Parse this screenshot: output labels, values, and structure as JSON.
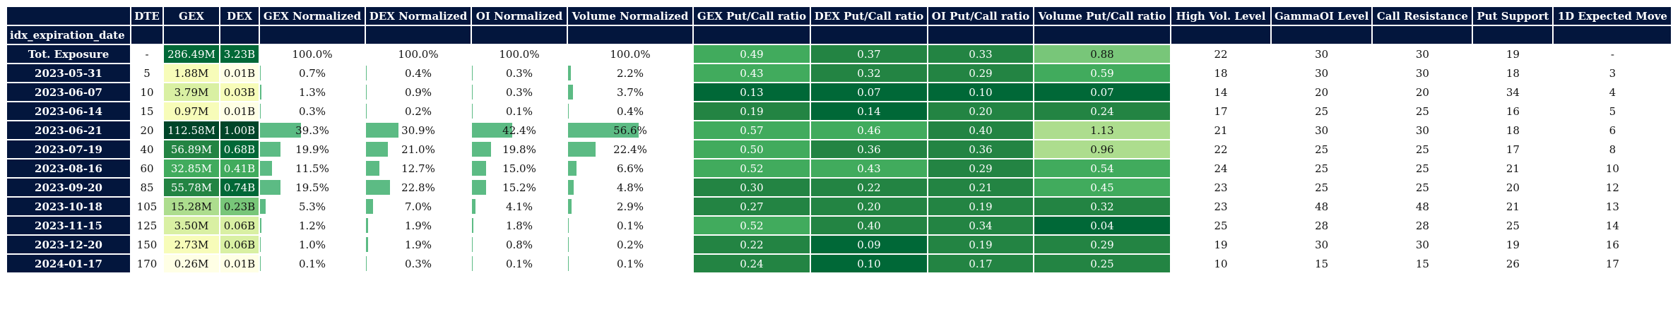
{
  "columns": [
    "DTE",
    "GEX",
    "DEX",
    "GEX Normalized",
    "DEX Normalized",
    "OI Normalized",
    "Volume Normalized",
    "GEX Put/Call ratio",
    "DEX Put/Call ratio",
    "OI Put/Call ratio",
    "Volume Put/Call ratio",
    "High Vol. Level",
    "GammaOI Level",
    "Call Resistance",
    "Put Support",
    "1D Expected Move"
  ],
  "index_name": "idx_expiration_date",
  "rows": [
    {
      "label": "Tot. Exposure",
      "cells": [
        "-",
        "286.49M",
        "3.23B",
        "100.0%",
        "100.0%",
        "100.0%",
        "100.0%",
        "0.49",
        "0.37",
        "0.33",
        "0.88",
        "22",
        "30",
        "30",
        "19",
        "-"
      ]
    },
    {
      "label": "2023-05-31",
      "cells": [
        "5",
        "1.88M",
        "0.01B",
        "0.7%",
        "0.4%",
        "0.3%",
        "2.2%",
        "0.43",
        "0.32",
        "0.29",
        "0.59",
        "18",
        "30",
        "30",
        "18",
        "3"
      ]
    },
    {
      "label": "2023-06-07",
      "cells": [
        "10",
        "3.79M",
        "0.03B",
        "1.3%",
        "0.9%",
        "0.3%",
        "3.7%",
        "0.13",
        "0.07",
        "0.10",
        "0.07",
        "14",
        "20",
        "20",
        "34",
        "4"
      ]
    },
    {
      "label": "2023-06-14",
      "cells": [
        "15",
        "0.97M",
        "0.01B",
        "0.3%",
        "0.2%",
        "0.1%",
        "0.4%",
        "0.19",
        "0.14",
        "0.20",
        "0.24",
        "17",
        "25",
        "25",
        "16",
        "5"
      ]
    },
    {
      "label": "2023-06-21",
      "cells": [
        "20",
        "112.58M",
        "1.00B",
        "39.3%",
        "30.9%",
        "42.4%",
        "56.6%",
        "0.57",
        "0.46",
        "0.40",
        "1.13",
        "21",
        "30",
        "30",
        "18",
        "6"
      ]
    },
    {
      "label": "2023-07-19",
      "cells": [
        "40",
        "56.89M",
        "0.68B",
        "19.9%",
        "21.0%",
        "19.8%",
        "22.4%",
        "0.50",
        "0.36",
        "0.36",
        "0.96",
        "22",
        "25",
        "25",
        "17",
        "8"
      ]
    },
    {
      "label": "2023-08-16",
      "cells": [
        "60",
        "32.85M",
        "0.41B",
        "11.5%",
        "12.7%",
        "15.0%",
        "6.6%",
        "0.52",
        "0.43",
        "0.29",
        "0.54",
        "24",
        "25",
        "25",
        "21",
        "10"
      ]
    },
    {
      "label": "2023-09-20",
      "cells": [
        "85",
        "55.78M",
        "0.74B",
        "19.5%",
        "22.8%",
        "15.2%",
        "4.8%",
        "0.30",
        "0.22",
        "0.21",
        "0.45",
        "23",
        "25",
        "25",
        "20",
        "12"
      ]
    },
    {
      "label": "2023-10-18",
      "cells": [
        "105",
        "15.28M",
        "0.23B",
        "5.3%",
        "7.0%",
        "4.1%",
        "2.9%",
        "0.27",
        "0.20",
        "0.19",
        "0.32",
        "23",
        "48",
        "48",
        "21",
        "13"
      ]
    },
    {
      "label": "2023-11-15",
      "cells": [
        "125",
        "3.50M",
        "0.06B",
        "1.2%",
        "1.9%",
        "1.8%",
        "0.1%",
        "0.52",
        "0.40",
        "0.34",
        "0.04",
        "25",
        "28",
        "28",
        "25",
        "14"
      ]
    },
    {
      "label": "2023-12-20",
      "cells": [
        "150",
        "2.73M",
        "0.06B",
        "1.0%",
        "1.9%",
        "0.8%",
        "0.2%",
        "0.22",
        "0.09",
        "0.19",
        "0.29",
        "19",
        "30",
        "30",
        "19",
        "16"
      ]
    },
    {
      "label": "2024-01-17",
      "cells": [
        "170",
        "0.26M",
        "0.01B",
        "0.1%",
        "0.3%",
        "0.1%",
        "0.1%",
        "0.24",
        "0.10",
        "0.17",
        "0.25",
        "10",
        "15",
        "15",
        "26",
        "17"
      ]
    }
  ],
  "colors": {
    "header_bg": "#03163d",
    "header_text": "#ffffff",
    "bar_fill": "#5cbb84",
    "gex_dex_scale": [
      "#ffffe5",
      "#f7fcb9",
      "#d9f0a3",
      "#addd8e",
      "#78c679",
      "#41ab5d",
      "#238443",
      "#006837",
      "#004529"
    ],
    "ratio_scale": [
      "#d9f0a3",
      "#addd8e",
      "#78c679",
      "#41ab5d",
      "#238443",
      "#006837"
    ]
  }
}
